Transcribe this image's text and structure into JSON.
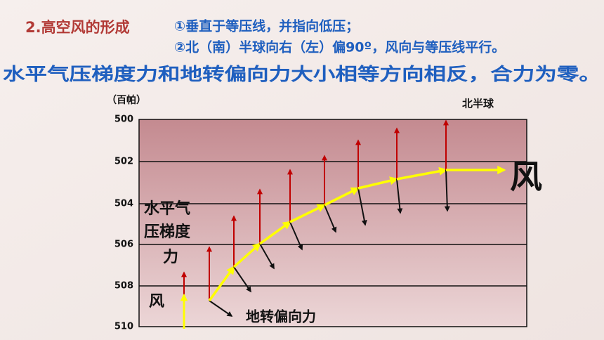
{
  "header": {
    "title": "2.高空风的形成",
    "rule1": "①垂直于等压线，并指向低压；",
    "rule2": "②北（南）半球向右（左）偏90º，风向与等压线平行。",
    "summary": "水平气压梯度力和地转偏向力大小相等方向相反，合力为零。"
  },
  "diagram": {
    "unit": "（百帕）",
    "isobars": [
      "500",
      "502",
      "504",
      "506",
      "508",
      "510"
    ],
    "hemisphere": "北半球",
    "wind_big": "风",
    "pgf_label": [
      "水平气",
      "压梯度",
      "力"
    ],
    "wind_small": "风",
    "coriolis_label": "地转偏向力"
  }
}
